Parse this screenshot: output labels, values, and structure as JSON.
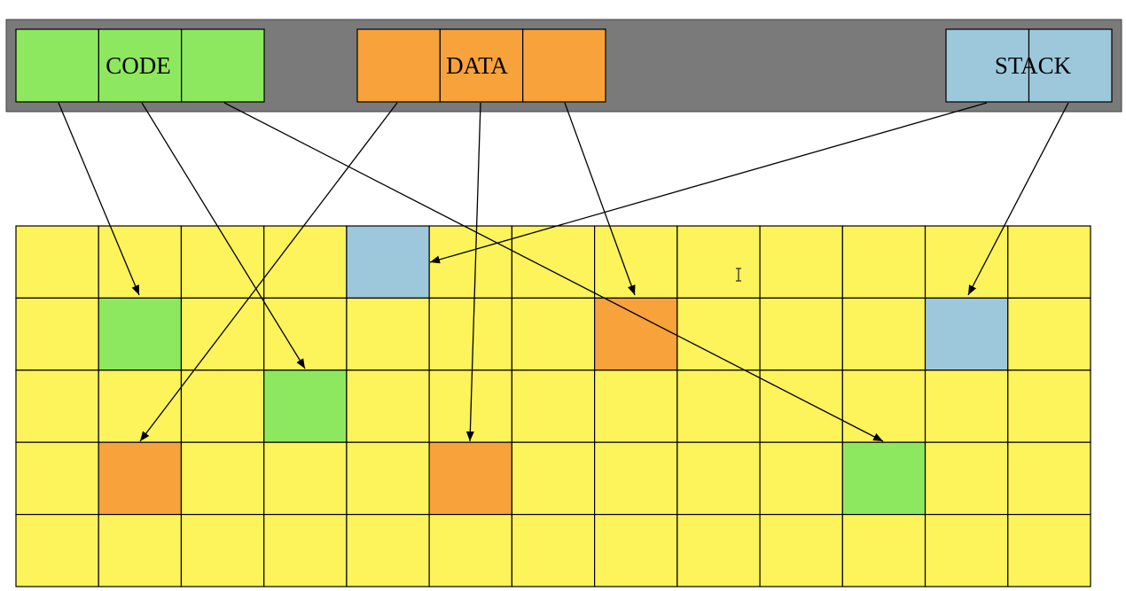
{
  "colors": {
    "code": "#8ee85f",
    "data": "#f7a23b",
    "stack": "#9dc8dc",
    "free": "#fdf35a",
    "address_space": "#7a7a7a",
    "line": "#000000"
  },
  "virtual_segments": [
    {
      "id": "code",
      "label": "CODE",
      "pages": 3
    },
    {
      "id": "data",
      "label": "DATA",
      "pages": 3
    },
    {
      "id": "stack",
      "label": "STACK",
      "pages": 2
    }
  ],
  "physical_memory": {
    "rows": 5,
    "cols": 13,
    "allocated": [
      {
        "row": 0,
        "col": 4,
        "segment": "stack"
      },
      {
        "row": 1,
        "col": 1,
        "segment": "code"
      },
      {
        "row": 1,
        "col": 7,
        "segment": "data"
      },
      {
        "row": 1,
        "col": 11,
        "segment": "stack"
      },
      {
        "row": 2,
        "col": 3,
        "segment": "code"
      },
      {
        "row": 3,
        "col": 1,
        "segment": "data"
      },
      {
        "row": 3,
        "col": 5,
        "segment": "data"
      },
      {
        "row": 3,
        "col": 10,
        "segment": "code"
      }
    ]
  },
  "mappings": [
    {
      "segment": "code",
      "page": 0,
      "row": 1,
      "col": 1
    },
    {
      "segment": "code",
      "page": 1,
      "row": 2,
      "col": 3
    },
    {
      "segment": "code",
      "page": 2,
      "row": 3,
      "col": 10
    },
    {
      "segment": "data",
      "page": 0,
      "row": 3,
      "col": 1
    },
    {
      "segment": "data",
      "page": 1,
      "row": 3,
      "col": 5
    },
    {
      "segment": "data",
      "page": 2,
      "row": 1,
      "col": 7
    },
    {
      "segment": "stack",
      "page": 0,
      "row": 0,
      "col": 4
    },
    {
      "segment": "stack",
      "page": 1,
      "row": 1,
      "col": 11
    }
  ],
  "cursor_icon": "text-cursor-icon"
}
